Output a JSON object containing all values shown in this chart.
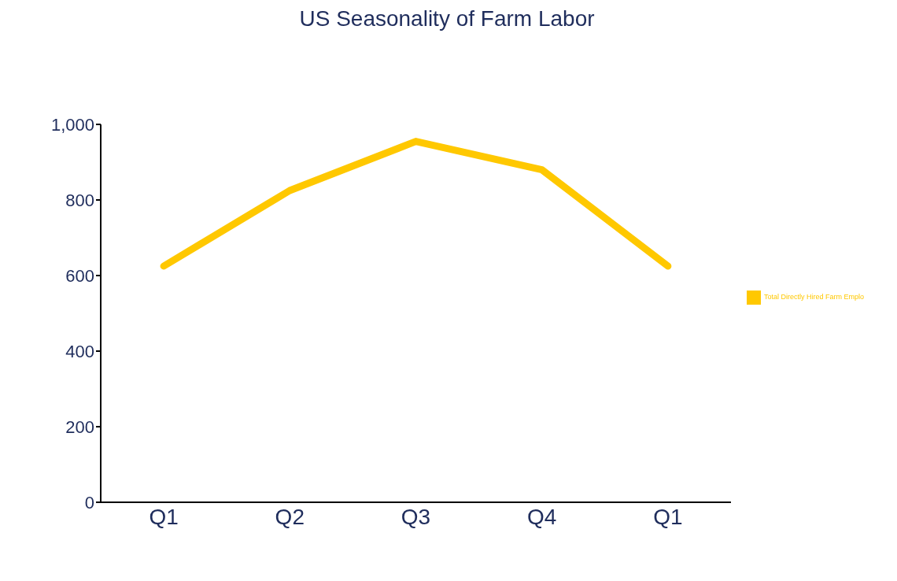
{
  "chart_data": {
    "type": "line",
    "title": "US Seasonality of Farm Labor",
    "categories": [
      "Q1",
      "Q2",
      "Q3",
      "Q4",
      "Q1"
    ],
    "series": [
      {
        "name": "Total Directly Hired Farm Emplo",
        "color": "#ffc800",
        "values": [
          625,
          825,
          955,
          880,
          625
        ]
      }
    ],
    "ylim": [
      0,
      1000
    ],
    "yticks": [
      0,
      200,
      400,
      600,
      800,
      {
        "value": 1000,
        "label": "1,000"
      }
    ],
    "grid": false,
    "legend": "right",
    "marker": "none",
    "line_style": "solid"
  }
}
